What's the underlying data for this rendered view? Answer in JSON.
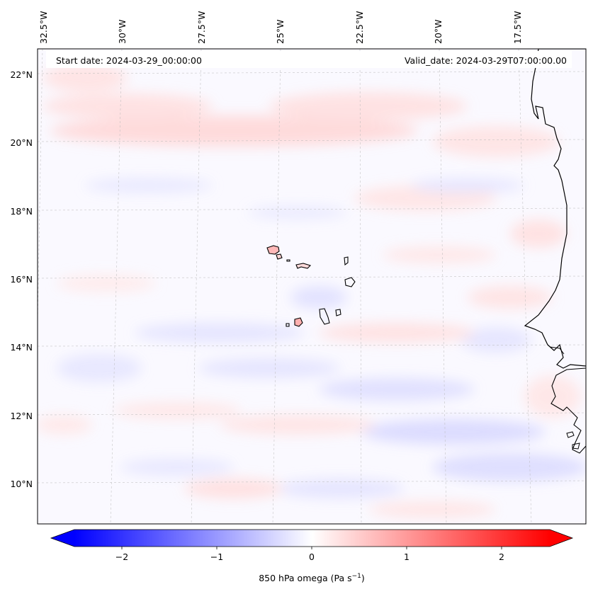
{
  "header": {
    "start_date": "Start date: 2024-03-29_00:00:00",
    "valid_date": "Valid_date: 2024-03-29T07:00:00.00"
  },
  "map": {
    "lon_labels": [
      "32.5°W",
      "30°W",
      "27.5°W",
      "25°W",
      "22.5°W",
      "20°W",
      "17.5°W"
    ],
    "lat_labels": [
      "22°N",
      "20°N",
      "18°N",
      "16°N",
      "14°N",
      "12°N",
      "10°N"
    ],
    "gridlines": "on",
    "coastline_color": "#000000"
  },
  "colorbar": {
    "label": "850 hPa omega (Pa s",
    "label_sup": "−1",
    "label_close": ")",
    "ticks": [
      "−2",
      "−1",
      "0",
      "1",
      "2"
    ],
    "min": -2.6,
    "max": 2.6,
    "low_color": "#0000ff",
    "mid_color": "#ffffff",
    "high_color": "#ff0000",
    "colormap": "bwr",
    "extend": "both"
  }
}
